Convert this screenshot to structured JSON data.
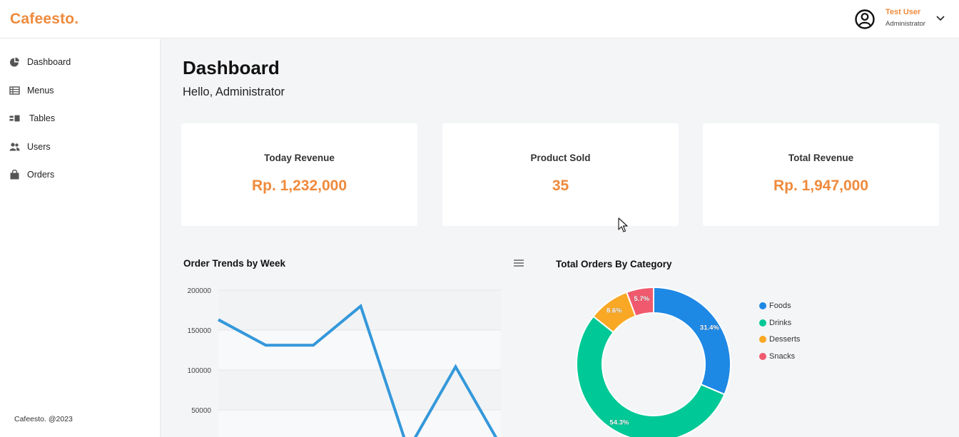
{
  "header": {
    "brand": "Cafeesto.",
    "user_name": "Test User",
    "user_role": "Administrator",
    "user_icon": "user-circle-icon",
    "menu_icon": "chevron-down-icon"
  },
  "sidebar": {
    "items": [
      {
        "label": "Dashboard",
        "icon": "pie-chart-icon"
      },
      {
        "label": "Menus",
        "icon": "table-list-icon"
      },
      {
        "label": "Tables",
        "icon": "tables-icon"
      },
      {
        "label": "Users",
        "icon": "users-icon"
      },
      {
        "label": "Orders",
        "icon": "shopping-bag-icon"
      }
    ],
    "footer": "Cafeesto. @2023"
  },
  "main": {
    "title": "Dashboard",
    "greeting": "Hello, Administrator",
    "cards": [
      {
        "label": "Today Revenue",
        "value": "Rp. 1,232,000"
      },
      {
        "label": "Product Sold",
        "value": "35"
      },
      {
        "label": "Total Revenue",
        "value": "Rp. 1,947,000"
      }
    ]
  },
  "colors": {
    "accent": "#ef8a3c",
    "line": "#3498db",
    "foods": "#1e88e5",
    "drinks": "#00c896",
    "desserts": "#f9a825",
    "snacks": "#f05a6e"
  },
  "chart_data": [
    {
      "type": "line",
      "title": "Order Trends by Week",
      "y_ticks": [
        "200000",
        "150000",
        "100000",
        "50000"
      ],
      "y_tick_values": [
        200000,
        150000,
        100000,
        50000
      ],
      "series": [
        {
          "values": [
            163000,
            131000,
            131000,
            180000,
            0,
            104000,
            0
          ]
        }
      ],
      "grid": true
    },
    {
      "type": "pie",
      "title": "Total Orders By Category",
      "categories": [
        "Foods",
        "Drinks",
        "Desserts",
        "Snacks"
      ],
      "values": [
        31.4,
        54.3,
        8.6,
        5.7
      ],
      "labels": [
        "31.4%",
        "54.3%",
        "8.6%",
        "5.7%"
      ],
      "legend": "right"
    }
  ]
}
